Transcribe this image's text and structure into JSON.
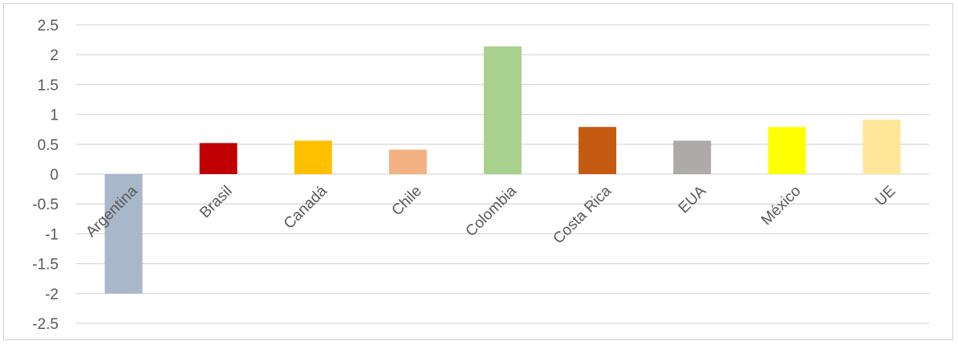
{
  "chart_data": {
    "type": "bar",
    "title": "",
    "xlabel": "",
    "ylabel": "",
    "ylim": [
      -2.5,
      2.5
    ],
    "yticks": [
      "2.5",
      "2",
      "1.5",
      "1",
      "0.5",
      "0",
      "-0.5",
      "-1",
      "-1.5",
      "-2",
      "-2.5"
    ],
    "grid": true,
    "categories": [
      "Argentina",
      "Brasil",
      "Canadá",
      "Chile",
      "Colombia",
      "Costa Rica",
      "EUA",
      "México",
      "UE"
    ],
    "values": [
      -2.0,
      0.52,
      0.56,
      0.41,
      2.14,
      0.79,
      0.56,
      0.79,
      0.91
    ],
    "colors": [
      "#a9b7cb",
      "#c00000",
      "#ffc000",
      "#f4b183",
      "#a9d18e",
      "#c55a11",
      "#aeaaaa",
      "#ffff00",
      "#ffe699"
    ]
  }
}
